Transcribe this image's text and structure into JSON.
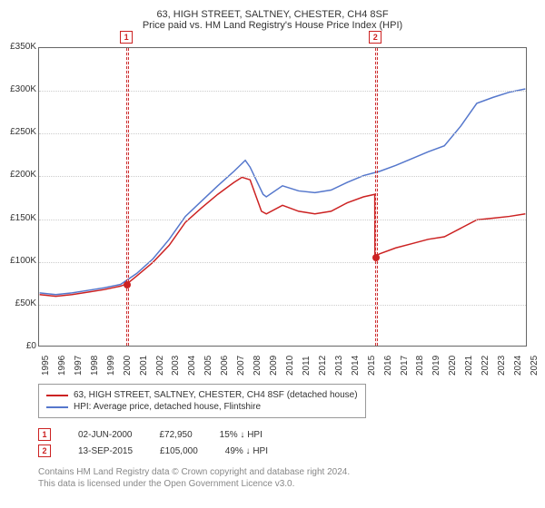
{
  "title": "63, HIGH STREET, SALTNEY, CHESTER, CH4 8SF",
  "subtitle": "Price paid vs. HM Land Registry's House Price Index (HPI)",
  "chart": {
    "type": "line",
    "background_color": "#ffffff",
    "plot_border_color": "#666666",
    "grid_color": "#cccccc",
    "title_fontsize": 12,
    "label_fontsize": 10,
    "x_years": [
      1995,
      1996,
      1997,
      1998,
      1999,
      2000,
      2001,
      2002,
      2003,
      2004,
      2005,
      2006,
      2007,
      2008,
      2009,
      2010,
      2011,
      2012,
      2013,
      2014,
      2015,
      2016,
      2017,
      2018,
      2019,
      2020,
      2021,
      2022,
      2023,
      2024,
      2025
    ],
    "ylim": [
      0,
      350000
    ],
    "ytick_step": 50000,
    "ytick_labels": [
      "£0",
      "£50K",
      "£100K",
      "£150K",
      "£200K",
      "£250K",
      "£300K",
      "£350K"
    ],
    "series": [
      {
        "name": "price_paid",
        "label": "63, HIGH STREET, SALTNEY, CHESTER, CH4 8SF (detached house)",
        "color": "#cc2222",
        "line_width": 1.5,
        "points": [
          [
            1995,
            60000
          ],
          [
            1996,
            58000
          ],
          [
            1997,
            60000
          ],
          [
            1998,
            63000
          ],
          [
            1999,
            66000
          ],
          [
            2000,
            70000
          ],
          [
            2000.42,
            72950
          ],
          [
            2001,
            82000
          ],
          [
            2002,
            98000
          ],
          [
            2003,
            118000
          ],
          [
            2004,
            145000
          ],
          [
            2005,
            162000
          ],
          [
            2006,
            178000
          ],
          [
            2007,
            192000
          ],
          [
            2007.5,
            198000
          ],
          [
            2008,
            195000
          ],
          [
            2008.7,
            158000
          ],
          [
            2009,
            155000
          ],
          [
            2010,
            165000
          ],
          [
            2011,
            158000
          ],
          [
            2012,
            155000
          ],
          [
            2013,
            158000
          ],
          [
            2014,
            168000
          ],
          [
            2015,
            175000
          ],
          [
            2015.7,
            178000
          ],
          [
            2015.71,
            105000
          ],
          [
            2016,
            108000
          ],
          [
            2017,
            115000
          ],
          [
            2018,
            120000
          ],
          [
            2019,
            125000
          ],
          [
            2020,
            128000
          ],
          [
            2021,
            138000
          ],
          [
            2022,
            148000
          ],
          [
            2023,
            150000
          ],
          [
            2024,
            152000
          ],
          [
            2025,
            155000
          ]
        ]
      },
      {
        "name": "hpi",
        "label": "HPI: Average price, detached house, Flintshire",
        "color": "#5577cc",
        "line_width": 1.5,
        "points": [
          [
            1995,
            62000
          ],
          [
            1996,
            60000
          ],
          [
            1997,
            62000
          ],
          [
            1998,
            65000
          ],
          [
            1999,
            68000
          ],
          [
            2000,
            72000
          ],
          [
            2001,
            85000
          ],
          [
            2002,
            102000
          ],
          [
            2003,
            125000
          ],
          [
            2004,
            152000
          ],
          [
            2005,
            170000
          ],
          [
            2006,
            188000
          ],
          [
            2007,
            205000
          ],
          [
            2007.7,
            218000
          ],
          [
            2008,
            210000
          ],
          [
            2008.8,
            178000
          ],
          [
            2009,
            175000
          ],
          [
            2010,
            188000
          ],
          [
            2011,
            182000
          ],
          [
            2012,
            180000
          ],
          [
            2013,
            183000
          ],
          [
            2014,
            192000
          ],
          [
            2015,
            200000
          ],
          [
            2016,
            205000
          ],
          [
            2017,
            212000
          ],
          [
            2018,
            220000
          ],
          [
            2019,
            228000
          ],
          [
            2020,
            235000
          ],
          [
            2021,
            258000
          ],
          [
            2022,
            285000
          ],
          [
            2023,
            292000
          ],
          [
            2024,
            298000
          ],
          [
            2025,
            302000
          ]
        ]
      }
    ],
    "vertical_bands": [
      {
        "id": 1,
        "color": "#cc2222",
        "x_start": 2000.35,
        "x_end": 2000.5
      },
      {
        "id": 2,
        "color": "#cc2222",
        "x_start": 2015.63,
        "x_end": 2015.78
      }
    ],
    "price_markers": [
      {
        "x": 2000.42,
        "y": 72950,
        "color": "#cc2222"
      },
      {
        "x": 2015.7,
        "y": 105000,
        "color": "#cc2222"
      }
    ],
    "marker_boxes": [
      {
        "label": "1",
        "color": "#cc2222",
        "above_x": 2000.42
      },
      {
        "label": "2",
        "color": "#cc2222",
        "above_x": 2015.7
      }
    ]
  },
  "legend": {
    "items": [
      {
        "color": "#cc2222",
        "text": "63, HIGH STREET, SALTNEY, CHESTER, CH4 8SF (detached house)"
      },
      {
        "color": "#5577cc",
        "text": "HPI: Average price, detached house, Flintshire"
      }
    ]
  },
  "events": [
    {
      "num": "1",
      "date": "02-JUN-2000",
      "price": "£72,950",
      "delta": "15% ↓ HPI"
    },
    {
      "num": "2",
      "date": "13-SEP-2015",
      "price": "£105,000",
      "delta": "49% ↓ HPI"
    }
  ],
  "attribution": {
    "line1": "Contains HM Land Registry data © Crown copyright and database right 2024.",
    "line2": "This data is licensed under the Open Government Licence v3.0."
  }
}
